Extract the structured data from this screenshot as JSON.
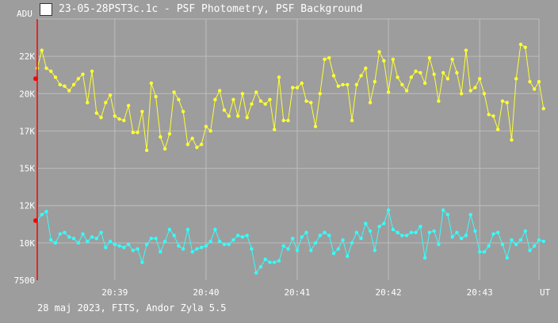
{
  "window": {
    "title": "23-05-28PST3c.1c - PSF Photometry, PSF Background",
    "icon": "app-logo-icon"
  },
  "footer": {
    "text": "28 maj 2023, FITS, Andor Zyla 5.5"
  },
  "chart_data": {
    "type": "line",
    "ylabel": "ADU",
    "xlabel": "UT",
    "grid": true,
    "background": "#9d9d9d",
    "grid_color": "#bdbdbd",
    "y_axis_color": "#ff0000",
    "xlim": [
      0,
      110
    ],
    "ylim": [
      7500,
      25000
    ],
    "yticks": [
      {
        "value": 7500,
        "label": "7500"
      },
      {
        "value": 10000,
        "label": "10K"
      },
      {
        "value": 12500,
        "label": "12K"
      },
      {
        "value": 15000,
        "label": "15K"
      },
      {
        "value": 17500,
        "label": "17K"
      },
      {
        "value": 20000,
        "label": "20K"
      },
      {
        "value": 22500,
        "label": "22K"
      }
    ],
    "xticks": [
      {
        "value": 17,
        "label": "20:39"
      },
      {
        "value": 37,
        "label": "20:40"
      },
      {
        "value": 57,
        "label": "20:41"
      },
      {
        "value": 77,
        "label": "20:42"
      },
      {
        "value": 97,
        "label": "20:43"
      }
    ],
    "markers": [
      {
        "x": 0,
        "y": 21000,
        "color": "#ff0000"
      },
      {
        "x": 0,
        "y": 11500,
        "color": "#ff0000"
      }
    ],
    "series": [
      {
        "color": "#ffff33",
        "values": [
          21700,
          22900,
          21700,
          21500,
          21100,
          20600,
          20500,
          20200,
          20600,
          21000,
          21300,
          19400,
          21500,
          18700,
          18400,
          19400,
          19900,
          18500,
          18300,
          18200,
          19200,
          17400,
          17400,
          18800,
          16200,
          20700,
          19800,
          17100,
          16300,
          17300,
          20100,
          19600,
          18800,
          16600,
          17000,
          16400,
          16600,
          17800,
          17500,
          19600,
          20200,
          18900,
          18500,
          19600,
          18500,
          20000,
          18400,
          19300,
          20100,
          19500,
          19300,
          19600,
          17600,
          21100,
          18200,
          18200,
          20400,
          20400,
          20700,
          19500,
          19400,
          17800,
          20000,
          22300,
          22400,
          21200,
          20500,
          20600,
          20600,
          18200,
          20600,
          21200,
          21700,
          19400,
          20800,
          22800,
          22200,
          20100,
          22300,
          21100,
          20600,
          20200,
          21100,
          21500,
          21400,
          20700,
          22400,
          21300,
          19500,
          21400,
          21000,
          22300,
          21400,
          20000,
          22900,
          20200,
          20400,
          21000,
          20000,
          18600,
          18500,
          17600,
          19500,
          19400,
          16900,
          21000,
          23300,
          23100,
          20800,
          20300,
          20800,
          19000
        ]
      },
      {
        "color": "#33ffff",
        "values": [
          11500,
          11900,
          12100,
          10200,
          10000,
          10600,
          10700,
          10400,
          10300,
          10000,
          10600,
          10100,
          10400,
          10300,
          10700,
          9700,
          10100,
          9900,
          9800,
          9700,
          9900,
          9500,
          9600,
          8700,
          9900,
          10300,
          10300,
          9400,
          10100,
          10900,
          10500,
          9800,
          9600,
          10900,
          9400,
          9600,
          9700,
          9800,
          10100,
          10900,
          10100,
          9900,
          9900,
          10200,
          10500,
          10400,
          10500,
          9600,
          8000,
          8400,
          8900,
          8700,
          8700,
          8800,
          9800,
          9600,
          10300,
          9500,
          10400,
          10700,
          9500,
          10000,
          10500,
          10700,
          10500,
          9300,
          9600,
          10200,
          9100,
          10000,
          10700,
          10300,
          11300,
          10800,
          9500,
          11100,
          11300,
          12200,
          10900,
          10700,
          10500,
          10500,
          10700,
          10700,
          11100,
          9000,
          10700,
          10800,
          9900,
          12200,
          11900,
          10400,
          10700,
          10300,
          10500,
          11900,
          10800,
          9400,
          9400,
          9800,
          10600,
          10700,
          9900,
          9000,
          10200,
          9900,
          10200,
          10800,
          9500,
          9800,
          10200,
          10100
        ]
      }
    ]
  }
}
